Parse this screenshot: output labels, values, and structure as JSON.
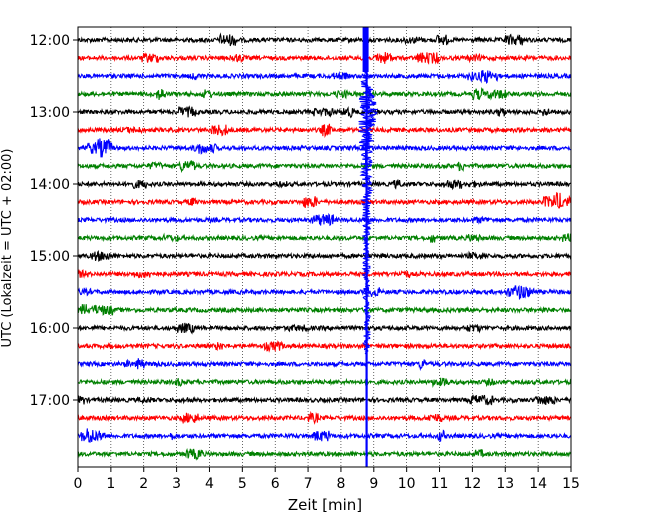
{
  "chart_data": {
    "type": "line",
    "title": "",
    "xlabel": "Zeit  [min]",
    "ylabel": "UTC (Lokalzeit = UTC + 02:00)",
    "xlim": [
      0,
      15
    ],
    "xticks": [
      "0",
      "1",
      "2",
      "3",
      "4",
      "5",
      "6",
      "7",
      "8",
      "9",
      "10",
      "11",
      "12",
      "13",
      "14",
      "15"
    ],
    "yticks": [
      "12:00",
      "13:00",
      "14:00",
      "15:00",
      "16:00",
      "17:00"
    ],
    "grid": "vertical dotted",
    "trace_interval_minutes": 15,
    "start_time": "12:00",
    "colors_cycle": [
      "#000000",
      "#ff0000",
      "#0000ff",
      "#008000"
    ],
    "event": {
      "time_minutes": 8.75,
      "main_trace_start": "13:15",
      "color": "#0000ff"
    },
    "traces": [
      {
        "time": "12:00",
        "color": "#000000"
      },
      {
        "time": "12:15",
        "color": "#ff0000"
      },
      {
        "time": "12:30",
        "color": "#0000ff"
      },
      {
        "time": "12:45",
        "color": "#008000"
      },
      {
        "time": "13:00",
        "color": "#000000"
      },
      {
        "time": "13:15",
        "color": "#ff0000"
      },
      {
        "time": "13:30",
        "color": "#0000ff"
      },
      {
        "time": "13:45",
        "color": "#008000"
      },
      {
        "time": "14:00",
        "color": "#000000"
      },
      {
        "time": "14:15",
        "color": "#ff0000"
      },
      {
        "time": "14:30",
        "color": "#0000ff"
      },
      {
        "time": "14:45",
        "color": "#008000"
      },
      {
        "time": "15:00",
        "color": "#000000"
      },
      {
        "time": "15:15",
        "color": "#ff0000"
      },
      {
        "time": "15:30",
        "color": "#0000ff"
      },
      {
        "time": "15:45",
        "color": "#008000"
      },
      {
        "time": "16:00",
        "color": "#000000"
      },
      {
        "time": "16:15",
        "color": "#ff0000"
      },
      {
        "time": "16:30",
        "color": "#0000ff"
      },
      {
        "time": "16:45",
        "color": "#008000"
      },
      {
        "time": "17:00",
        "color": "#000000"
      },
      {
        "time": "17:15",
        "color": "#ff0000"
      },
      {
        "time": "17:30",
        "color": "#0000ff"
      },
      {
        "time": "17:45",
        "color": "#008000"
      }
    ]
  }
}
